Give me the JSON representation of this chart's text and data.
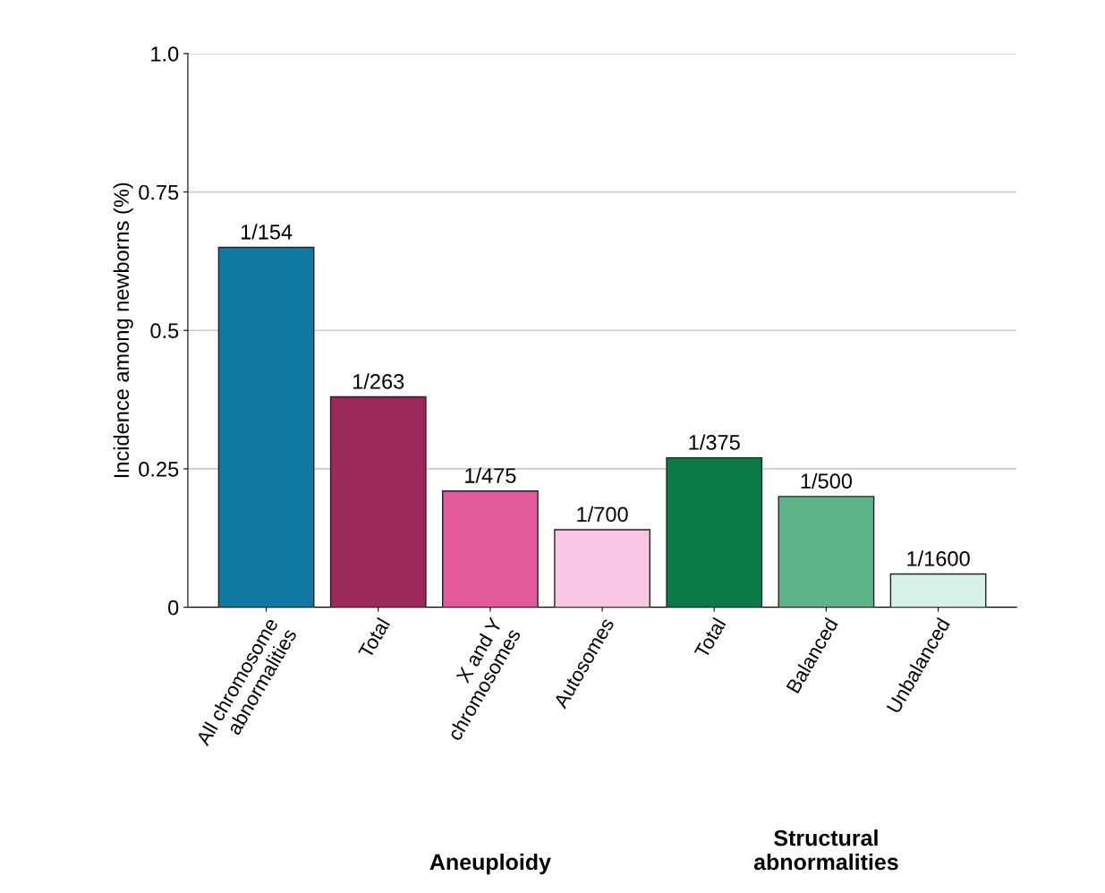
{
  "chart_data": {
    "type": "bar",
    "ylabel": "Incidence among newborns (%)",
    "categories": [
      "All chromosome\nabnormalities",
      "Total",
      "X and Y\nchromosomes",
      "Autosomes",
      "Total",
      "Balanced",
      "Unbalanced"
    ],
    "values": [
      0.65,
      0.38,
      0.21,
      0.14,
      0.27,
      0.2,
      0.06
    ],
    "colors": [
      "#0e7aa3",
      "#9b2a5a",
      "#e35a9c",
      "#f9c7e3",
      "#0b7a48",
      "#5db48a",
      "#d6f0ea"
    ],
    "value_labels": [
      "1/154",
      "1/263",
      "1/475",
      "1/700",
      "1/375",
      "1/500",
      "1/1600"
    ],
    "ylim": [
      0,
      1.0
    ],
    "yticks": [
      0,
      {
        "value": 0.25,
        "label": "0.25"
      },
      {
        "value": 0.5,
        "label": "0.5"
      },
      {
        "value": 0.75,
        "label": "0.75"
      },
      {
        "value": 1.0,
        "label": "1.0"
      }
    ],
    "grid": "y",
    "annotations": [
      "Aneuploidy",
      "Structural\nabnormalities"
    ]
  }
}
